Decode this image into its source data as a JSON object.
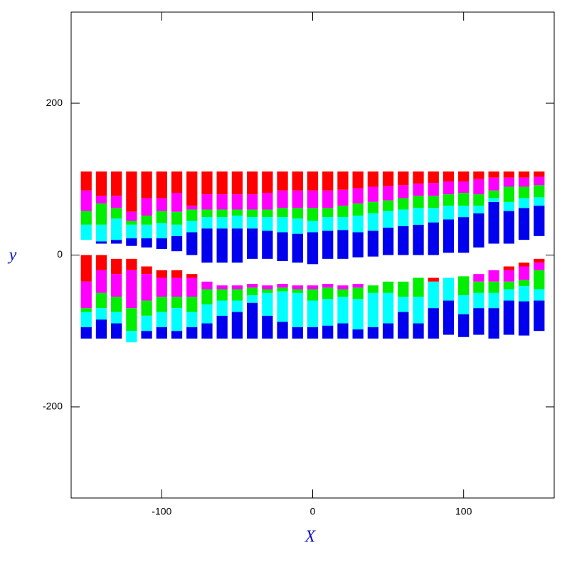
{
  "chart_data": {
    "type": "bar",
    "xlabel": "X",
    "ylabel": "y",
    "xlim": [
      -160,
      160
    ],
    "ylim": [
      -320,
      320
    ],
    "xticks": [
      -100,
      0,
      100
    ],
    "yticks": [
      -200,
      0,
      200
    ],
    "x": [
      -150,
      -140,
      -130,
      -120,
      -110,
      -100,
      -90,
      -80,
      -70,
      -60,
      -50,
      -40,
      -30,
      -20,
      -10,
      0,
      10,
      20,
      30,
      40,
      50,
      60,
      70,
      80,
      90,
      100,
      110,
      120,
      130,
      140,
      150
    ],
    "upper_base": [
      20,
      15,
      15,
      12,
      10,
      8,
      5,
      0,
      -10,
      -10,
      -10,
      -5,
      -5,
      -8,
      -10,
      -12,
      -5,
      -5,
      -3,
      -2,
      0,
      0,
      0,
      0,
      3,
      3,
      10,
      15,
      15,
      20,
      25
    ],
    "lower_top": [
      0,
      0,
      -5,
      -5,
      -15,
      -20,
      -20,
      -25,
      -35,
      -40,
      -40,
      -38,
      -40,
      -38,
      -40,
      -40,
      -38,
      -40,
      -38,
      -40,
      -35,
      -35,
      -30,
      -30,
      -30,
      -28,
      -25,
      -20,
      -15,
      -10,
      -5
    ],
    "series": [
      {
        "stack": "upper",
        "color": "#0000ee",
        "values": [
          0,
          3,
          5,
          10,
          12,
          14,
          20,
          30,
          45,
          45,
          45,
          40,
          37,
          38,
          38,
          42,
          37,
          38,
          33,
          34,
          36,
          38,
          40,
          43,
          44,
          47,
          45,
          55,
          43,
          42,
          40
        ]
      },
      {
        "stack": "upper",
        "color": "#00ffff",
        "values": [
          20,
          22,
          28,
          18,
          18,
          20,
          15,
          15,
          15,
          15,
          17,
          15,
          18,
          20,
          20,
          15,
          18,
          17,
          22,
          23,
          22,
          22,
          22,
          19,
          18,
          15,
          10,
          5,
          12,
          13,
          11
        ]
      },
      {
        "stack": "upper",
        "color": "#00ee00",
        "values": [
          18,
          28,
          14,
          5,
          12,
          16,
          17,
          15,
          10,
          10,
          8,
          10,
          10,
          12,
          14,
          17,
          12,
          15,
          16,
          15,
          14,
          15,
          16,
          16,
          15,
          17,
          15,
          10,
          20,
          15,
          16
        ]
      },
      {
        "stack": "upper",
        "color": "#ff00ff",
        "values": [
          27,
          10,
          16,
          12,
          23,
          17,
          25,
          5,
          20,
          20,
          20,
          20,
          22,
          23,
          23,
          23,
          23,
          21,
          20,
          20,
          19,
          17,
          16,
          17,
          17,
          15,
          20,
          17,
          12,
          12,
          11
        ]
      },
      {
        "stack": "upper",
        "color": "#ff0000",
        "values": [
          25,
          32,
          32,
          53,
          35,
          35,
          28,
          45,
          30,
          30,
          30,
          30,
          28,
          25,
          25,
          25,
          25,
          24,
          22,
          20,
          19,
          18,
          16,
          15,
          13,
          13,
          10,
          8,
          8,
          8,
          7
        ]
      },
      {
        "stack": "lower",
        "color": "#ff0000",
        "values": [
          35,
          20,
          20,
          15,
          10,
          10,
          10,
          5,
          0,
          0,
          0,
          0,
          0,
          0,
          0,
          0,
          0,
          0,
          0,
          0,
          0,
          0,
          0,
          5,
          0,
          0,
          0,
          0,
          5,
          5,
          5
        ]
      },
      {
        "stack": "lower",
        "color": "#ff00ff",
        "values": [
          35,
          30,
          30,
          50,
          35,
          25,
          25,
          25,
          10,
          5,
          5,
          5,
          5,
          5,
          5,
          5,
          5,
          5,
          5,
          0,
          0,
          0,
          0,
          0,
          0,
          0,
          10,
          15,
          15,
          18,
          10
        ]
      },
      {
        "stack": "lower",
        "color": "#00ee00",
        "values": [
          5,
          20,
          20,
          30,
          20,
          20,
          15,
          20,
          20,
          15,
          15,
          10,
          5,
          5,
          5,
          15,
          15,
          10,
          15,
          10,
          15,
          20,
          25,
          0,
          0,
          25,
          15,
          15,
          10,
          8,
          25
        ]
      },
      {
        "stack": "lower",
        "color": "#00ffff",
        "values": [
          20,
          15,
          15,
          15,
          20,
          20,
          30,
          20,
          25,
          20,
          15,
          10,
          30,
          40,
          45,
          35,
          35,
          35,
          40,
          45,
          40,
          20,
          35,
          35,
          30,
          25,
          20,
          20,
          15,
          20,
          15
        ]
      },
      {
        "stack": "lower",
        "color": "#0000ee",
        "values": [
          15,
          25,
          20,
          0,
          10,
          15,
          10,
          15,
          20,
          30,
          35,
          47,
          30,
          22,
          15,
          15,
          17,
          20,
          12,
          15,
          20,
          35,
          20,
          40,
          45,
          30,
          35,
          40,
          45,
          45,
          40
        ]
      }
    ]
  }
}
